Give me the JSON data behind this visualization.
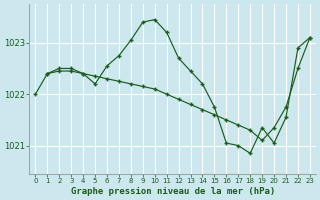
{
  "title": "Graphe pression niveau de la mer (hPa)",
  "background_color": "#cce8ee",
  "grid_color": "#ffffff",
  "grid_minor_color": "#ddf0f4",
  "line_color": "#1a5c1a",
  "marker_color": "#1a5c1a",
  "xlim": [
    -0.5,
    23.5
  ],
  "ylim": [
    1020.45,
    1023.75
  ],
  "yticks": [
    1021,
    1022,
    1023
  ],
  "xticks": [
    0,
    1,
    2,
    3,
    4,
    5,
    6,
    7,
    8,
    9,
    10,
    11,
    12,
    13,
    14,
    15,
    16,
    17,
    18,
    19,
    20,
    21,
    22,
    23
  ],
  "series": [
    {
      "x": [
        0,
        1,
        2,
        3,
        4,
        5,
        6,
        7,
        8,
        9,
        10,
        11,
        12,
        13,
        14,
        15,
        16,
        17,
        18,
        19,
        20,
        21,
        22,
        23
      ],
      "y": [
        1022.0,
        1022.4,
        1022.5,
        1022.5,
        1022.4,
        1022.2,
        1022.55,
        1022.75,
        1023.05,
        1023.4,
        1023.45,
        1023.2,
        1022.7,
        1022.45,
        1022.2,
        1021.75,
        1021.05,
        1021.0,
        1020.85,
        1021.35,
        1021.05,
        1021.55,
        1022.9,
        1023.1
      ]
    },
    {
      "x": [
        1,
        2,
        3,
        4,
        5,
        6,
        7,
        8,
        9,
        10,
        11,
        12,
        13,
        14,
        15,
        16,
        17,
        18,
        19,
        20,
        21,
        22,
        23
      ],
      "y": [
        1022.4,
        1022.45,
        1022.45,
        1022.4,
        1022.35,
        1022.3,
        1022.25,
        1022.2,
        1022.15,
        1022.1,
        1022.0,
        1021.9,
        1021.8,
        1021.7,
        1021.6,
        1021.5,
        1021.4,
        1021.3,
        1021.1,
        1021.35,
        1021.75,
        1022.5,
        1023.1
      ]
    }
  ]
}
